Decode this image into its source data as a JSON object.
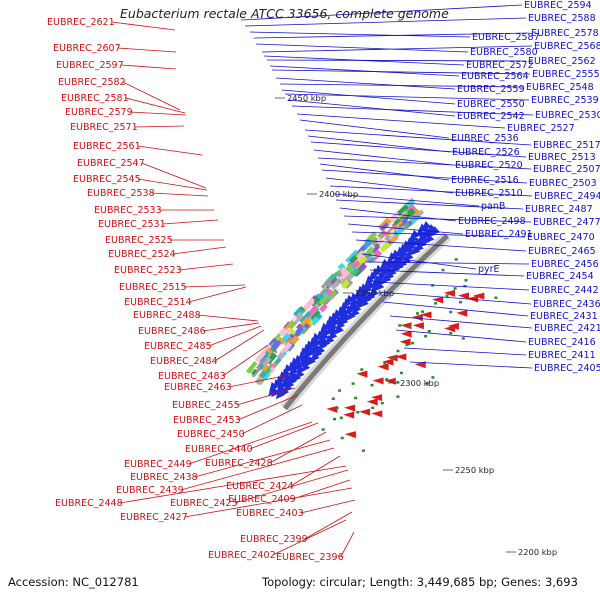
{
  "title": "Eubacterium rectale ATCC 33656, complete genome",
  "accession": "Accession: NC_012781",
  "topology": "Topology: circular; Length: 3,449,685 bp; Genes: 3,693",
  "colors": {
    "left_label": "#d01010",
    "right_label": "#1010c8",
    "ring": "#7a7a7a",
    "arrows": "#1f2fe0",
    "rev_features": "#e01818",
    "small_features": "#2a8a2a"
  },
  "left_labels": [
    "EUBREC_2621",
    "EUBREC_2607",
    "EUBREC_2597",
    "EUBREC_2582",
    "EUBREC_2581",
    "EUBREC_2579",
    "EUBREC_2571",
    "EUBREC_2561",
    "EUBREC_2547",
    "EUBREC_2545",
    "EUBREC_2538",
    "EUBREC_2533",
    "EUBREC_2531",
    "EUBREC_2525",
    "EUBREC_2524",
    "EUBREC_2523",
    "EUBREC_2515",
    "EUBREC_2514",
    "EUBREC_2488",
    "EUBREC_2486",
    "EUBREC_2485",
    "EUBREC_2484",
    "EUBREC_2483",
    "EUBREC_2463",
    "EUBREC_2455",
    "EUBREC_2453",
    "EUBREC_2450",
    "EUBREC_2440",
    "EUBREC_2449",
    "EUBREC_2428",
    "EUBREC_2438",
    "EUBREC_2439",
    "EUBREC_2424",
    "EUBREC_2448",
    "EUBREC_2425",
    "EUBREC_2409",
    "EUBREC_2427",
    "EUBREC_2403",
    "EUBREC_2399",
    "EUBREC_2402",
    "EUBREC_2396"
  ],
  "right_labels": [
    "EUBREC_2594",
    "EUBREC_2588",
    "EUBREC_2587",
    "EUBREC_2578",
    "EUBREC_2580",
    "EUBREC_2568",
    "EUBREC_2572",
    "EUBREC_2562",
    "EUBREC_2564",
    "EUBREC_2555",
    "EUBREC_2559",
    "EUBREC_2548",
    "EUBREC_2550",
    "EUBREC_2539",
    "EUBREC_2542",
    "EUBREC_2530",
    "EUBREC_2527",
    "EUBREC_2536",
    "EUBREC_2517",
    "EUBREC_2526",
    "EUBREC_2513",
    "EUBREC_2520",
    "EUBREC_2507",
    "EUBREC_2516",
    "EUBREC_2503",
    "EUBREC_2510",
    "EUBREC_2494",
    "panB",
    "EUBREC_2487",
    "EUBREC_2498",
    "EUBREC_2477",
    "EUBREC_2491",
    "EUBREC_2470",
    "EUBREC_2465",
    "pyrE",
    "EUBREC_2456",
    "EUBREC_2454",
    "EUBREC_2442",
    "EUBREC_2436",
    "EUBREC_2431",
    "EUBREC_2421",
    "EUBREC_2416",
    "EUBREC_2411",
    "EUBREC_2405"
  ],
  "kbp_labels": [
    "2450 kbp",
    "2400 kbp",
    "2350 kbp",
    "2300 kbp",
    "2250 kbp",
    "2200 kbp"
  ]
}
